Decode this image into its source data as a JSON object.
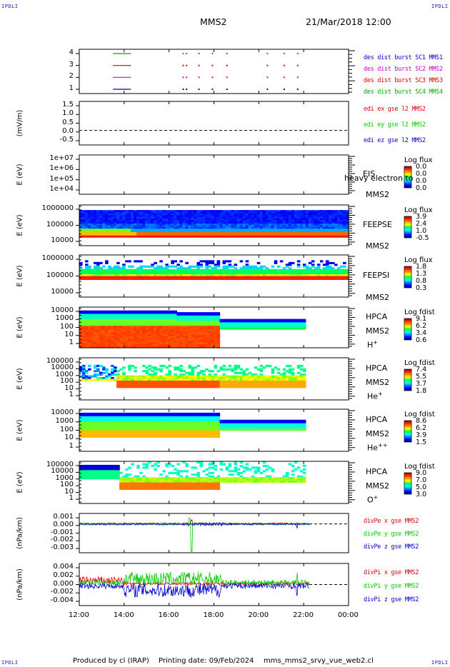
{
  "header": {
    "corner_label": "IPDLI",
    "spacecraft": "MMS2",
    "date": "21/Mar/2018 12:00"
  },
  "footer": {
    "produced_by": "Produced by cl (IRAP)",
    "printing_date": "Printing date: 09/Feb/2024",
    "filename": "mms_mms2_srvy_vue_web2.cl"
  },
  "colors": {
    "mms1": "#00aa00",
    "mms2": "#dd0000",
    "mms3": "#cc00cc",
    "mms4": "#0000cc",
    "x": "#dd0000",
    "y": "#00cc00",
    "z": "#0000cc"
  },
  "chart_data": {
    "type": "heatmap",
    "x_axis": {
      "ticks": [
        "12:00",
        "14:00",
        "16:00",
        "18:00",
        "20:00",
        "22:00",
        "00:00"
      ],
      "range_hours": [
        12,
        24
      ]
    },
    "panels": [
      {
        "id": "availability",
        "type": "scatter",
        "yticks": [
          "4",
          "3",
          "2",
          "1"
        ],
        "legend": [
          {
            "text": "des dist burst SC1 MMS1",
            "color": "#0000cc"
          },
          {
            "text": "des dist burst SC2 MMS2",
            "color": "#cc00cc"
          },
          {
            "text": "des dist burst SC3 MMS3",
            "color": "#dd0000"
          },
          {
            "text": "des dist burst SC4 MMS4",
            "color": "#00aa00"
          }
        ],
        "series": [
          {
            "level": 4,
            "color": "#00aa00",
            "segments": [
              [
                13.5,
                14.3
              ]
            ],
            "dots": [
              16.6,
              16.75,
              17.3,
              17.9,
              18.55,
              20.35,
              21.1,
              21.7
            ]
          },
          {
            "level": 3,
            "color": "#dd0000",
            "segments": [
              [
                13.5,
                14.3
              ]
            ],
            "dots": [
              16.6,
              16.75,
              17.3,
              17.9,
              18.55,
              20.35,
              21.1,
              21.7
            ]
          },
          {
            "level": 2,
            "color": "#cc00cc",
            "segments": [
              [
                13.5,
                14.3
              ]
            ],
            "dots": [
              16.6,
              16.75,
              17.3,
              17.9,
              18.55,
              20.35,
              21.1,
              21.7
            ]
          },
          {
            "level": 1,
            "color": "#0000cc",
            "segments": [
              [
                13.5,
                14.3
              ]
            ],
            "dots": [
              16.6,
              16.75,
              17.3,
              17.9,
              18.55,
              20.35,
              21.1,
              21.7
            ]
          }
        ]
      },
      {
        "id": "edi-e",
        "type": "line",
        "ylabel": "(mV/m)",
        "yticks": [
          "1.5",
          "1.0",
          "0.5",
          "0.0",
          "-0.5"
        ],
        "ylim": [
          -0.8,
          1.6
        ],
        "zero_line": true,
        "legend": [
          {
            "text": "edi ex gse l2 MMS2",
            "color": "#dd0000"
          },
          {
            "text": "edi ey gse l2 MMS2",
            "color": "#00cc00"
          },
          {
            "text": "edi ez gse l2 MMS2",
            "color": "#0000cc"
          }
        ]
      },
      {
        "id": "eis",
        "type": "heatmap",
        "ylabel": "E (eV)",
        "yticks": [
          "1e+07",
          "1e+06",
          "1e+05",
          "1e+04"
        ],
        "instrument": "EIS",
        "subtitle": "MMS2",
        "overlay_text": "heavy electron to",
        "colorbar": {
          "title": "Log flux",
          "ticks": [
            "0.0",
            "0.0",
            "0.0",
            "0.0"
          ]
        }
      },
      {
        "id": "feepse",
        "type": "heatmap",
        "ylabel": "E (eV)",
        "yticks": [
          "1000000",
          "100000",
          "10000"
        ],
        "instrument": "FEEPSE",
        "subtitle": "MMS2",
        "colorbar": {
          "title": "Log flux",
          "ticks": [
            "3.9",
            "2.4",
            "1.0",
            "-0.5"
          ]
        }
      },
      {
        "id": "feepsi",
        "type": "heatmap",
        "ylabel": "E (eV)",
        "yticks": [
          "1000000",
          "100000",
          "10000"
        ],
        "instrument": "FEEPSI",
        "subtitle": "MMS2",
        "colorbar": {
          "title": "Log flux",
          "ticks": [
            "1.8",
            "1.3",
            "0.8",
            "0.3"
          ]
        }
      },
      {
        "id": "hpca-h",
        "type": "heatmap",
        "ylabel": "E (eV)",
        "yticks": [
          "10000",
          "1000",
          "100",
          "10",
          "1"
        ],
        "instrument": "HPCA",
        "subtitle": "MMS2",
        "species": "H",
        "charge": "+",
        "colorbar": {
          "title": "Log fdist",
          "ticks": [
            "9.1",
            "6.2",
            "3.4",
            "0.6"
          ]
        }
      },
      {
        "id": "hpca-he1",
        "type": "heatmap",
        "ylabel": "E (eV)",
        "yticks": [
          "100000",
          "10000",
          "1000",
          "100",
          "10",
          "1"
        ],
        "instrument": "HPCA",
        "subtitle": "MMS2",
        "species": "He",
        "charge": "+",
        "colorbar": {
          "title": "Log fdist",
          "ticks": [
            "7.4",
            "5.5",
            "3.7",
            "1.8"
          ]
        }
      },
      {
        "id": "hpca-he2",
        "type": "heatmap",
        "ylabel": "E (eV)",
        "yticks": [
          "10000",
          "1000",
          "100",
          "10",
          "1"
        ],
        "instrument": "HPCA",
        "subtitle": "MMS2",
        "species": "He",
        "charge": "++",
        "colorbar": {
          "title": "Log fdist",
          "ticks": [
            "8.6",
            "6.2",
            "3.9",
            "1.5"
          ]
        }
      },
      {
        "id": "hpca-o",
        "type": "heatmap",
        "ylabel": "E (eV)",
        "yticks": [
          "100000",
          "10000",
          "1000",
          "100",
          "10",
          "1"
        ],
        "instrument": "HPCA",
        "subtitle": "MMS2",
        "species": "O",
        "charge": "+",
        "colorbar": {
          "title": "Log fdist",
          "ticks": [
            "9.0",
            "7.0",
            "5.0",
            "3.0"
          ]
        }
      },
      {
        "id": "divpe",
        "type": "line",
        "ylabel": "(nPa/km)",
        "yticks": [
          "0.001",
          "0.000",
          "-0.001",
          "-0.002",
          "-0.003"
        ],
        "ylim": [
          -0.0033,
          0.0012
        ],
        "zero_line": true,
        "legend": [
          {
            "text": "divPe x gse MMS2",
            "color": "#dd0000"
          },
          {
            "text": "divPe y gse MMS2",
            "color": "#00cc00"
          },
          {
            "text": "divPe z gse MMS2",
            "color": "#0000cc"
          }
        ]
      },
      {
        "id": "divpi",
        "type": "line",
        "ylabel": "(nPa/km)",
        "yticks": [
          "0.004",
          "0.002",
          "0.000",
          "-0.002",
          "-0.004"
        ],
        "ylim": [
          -0.0045,
          0.0045
        ],
        "zero_line": true,
        "legend": [
          {
            "text": "divPi x gse MMS2",
            "color": "#dd0000"
          },
          {
            "text": "divPi y gse MMS2",
            "color": "#00cc00"
          },
          {
            "text": "divPi z gse MMS2",
            "color": "#0000cc"
          }
        ]
      }
    ]
  }
}
